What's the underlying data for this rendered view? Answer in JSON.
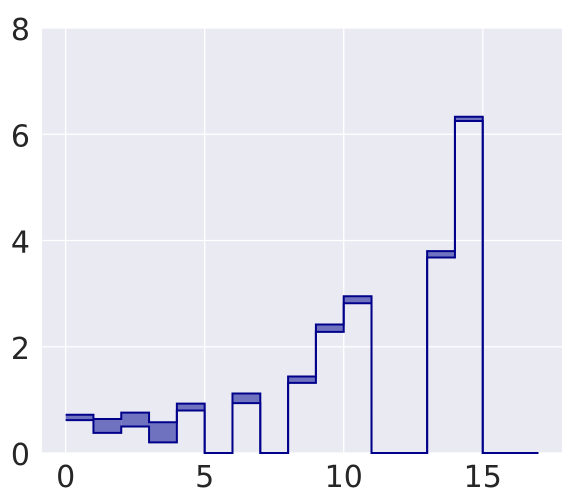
{
  "chart_data": {
    "type": "area",
    "style": "step-fill-between",
    "x_edges": [
      0,
      1,
      2,
      3,
      4,
      5,
      6,
      7,
      8,
      9,
      10,
      11,
      12,
      13,
      14,
      15,
      16,
      17
    ],
    "series": [
      {
        "values": [
          0.72,
          0.64,
          0.76,
          0.58,
          0.93,
          0,
          1.12,
          0,
          1.44,
          2.42,
          2.95,
          0,
          0,
          3.8,
          6.33,
          0,
          0
        ]
      },
      {
        "values": [
          0.62,
          0.38,
          0.5,
          0.2,
          0.8,
          0,
          0.94,
          0,
          1.32,
          2.28,
          2.82,
          0,
          0,
          3.68,
          6.25,
          0,
          0
        ]
      }
    ],
    "xlim": [
      -0.85,
      17.85
    ],
    "ylim": [
      0,
      8
    ],
    "xticks": [
      0,
      5,
      10,
      15
    ],
    "yticks": [
      0,
      2,
      4,
      6,
      8
    ],
    "grid": true,
    "colors": {
      "background": "#eaeaf2",
      "grid": "#ffffff",
      "line": "#00008b",
      "fill": "#6f73bf"
    }
  }
}
